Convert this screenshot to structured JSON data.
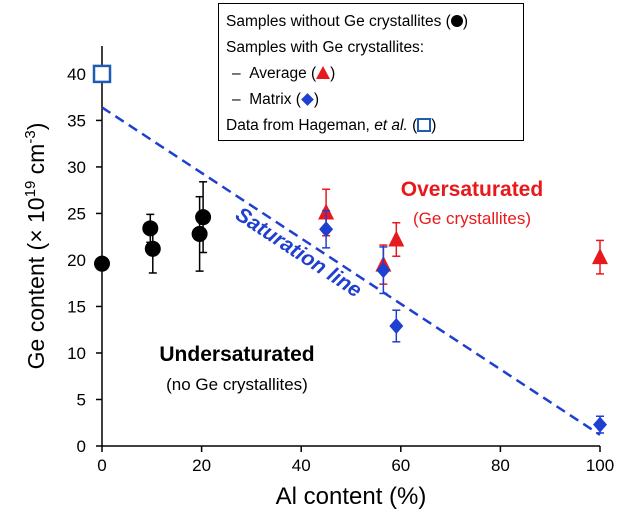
{
  "chart_data": {
    "type": "scatter",
    "xlabel": "Al content (%)",
    "ylabel_main": "Ge content (× 10",
    "ylabel_exp": "19",
    "ylabel_unit": " cm",
    "ylabel_unit_exp": "-3",
    "ylabel_close": ")",
    "xlim": [
      0,
      100
    ],
    "ylim": [
      0,
      43
    ],
    "xticks": [
      0,
      20,
      40,
      60,
      80,
      100
    ],
    "yticks": [
      0,
      5,
      10,
      15,
      20,
      25,
      30,
      35,
      40
    ],
    "grid": false,
    "legend_placement": "top-right",
    "series": [
      {
        "key": "without_ge",
        "marker": "circle",
        "color": "#000000",
        "points": [
          {
            "x": 0,
            "y": 19.6,
            "err": 0
          },
          {
            "x": 9.7,
            "y": 23.4,
            "err": 1.5
          },
          {
            "x": 10.2,
            "y": 21.2,
            "err": 2.6
          },
          {
            "x": 19.6,
            "y": 22.8,
            "err": 4.0
          },
          {
            "x": 20.3,
            "y": 24.6,
            "err": 3.8
          }
        ]
      },
      {
        "key": "average",
        "marker": "triangle",
        "color": "#e8191c",
        "points": [
          {
            "x": 45,
            "y": 25.1,
            "err": 2.5
          },
          {
            "x": 56.5,
            "y": 19.5,
            "err": 2.1
          },
          {
            "x": 59.1,
            "y": 22.2,
            "err": 1.8
          },
          {
            "x": 100,
            "y": 20.3,
            "err": 1.8
          }
        ]
      },
      {
        "key": "matrix",
        "marker": "diamond",
        "color": "#1f3fd1",
        "points": [
          {
            "x": 45,
            "y": 23.3,
            "err": 2.0
          },
          {
            "x": 56.5,
            "y": 18.9,
            "err": 2.5
          },
          {
            "x": 59.1,
            "y": 12.9,
            "err": 1.7
          },
          {
            "x": 100,
            "y": 2.3,
            "err": 0.9
          }
        ]
      },
      {
        "key": "hageman",
        "marker": "open-square",
        "color": "#1f5bb5",
        "points": [
          {
            "x": 0,
            "y": 40.0,
            "err": 0
          }
        ]
      }
    ],
    "saturation_line": {
      "label": "Saturation line",
      "color": "#1f3fd1",
      "x": [
        0,
        100
      ],
      "y": [
        36.4,
        1.2
      ]
    },
    "annotations": {
      "oversaturated_title": "Oversaturated",
      "oversaturated_sub": "(Ge crystallites)",
      "oversaturated_color": "#e8191c",
      "undersaturated_title": "Undersaturated",
      "undersaturated_sub": "(no Ge crystallites)"
    }
  },
  "legend": {
    "row1": "Samples without Ge crystallites (",
    "row1_end": ")",
    "row2": "Samples with Ge crystallites:",
    "row3_dash": "–",
    "row3": "Average (",
    "row3_end": ")",
    "row4_dash": "–",
    "row4": "Matrix (",
    "row4_end": ")",
    "row5": "Data from Hageman, ",
    "row5_ital": "et al.",
    "row5_mid": " (",
    "row5_end": ")"
  }
}
